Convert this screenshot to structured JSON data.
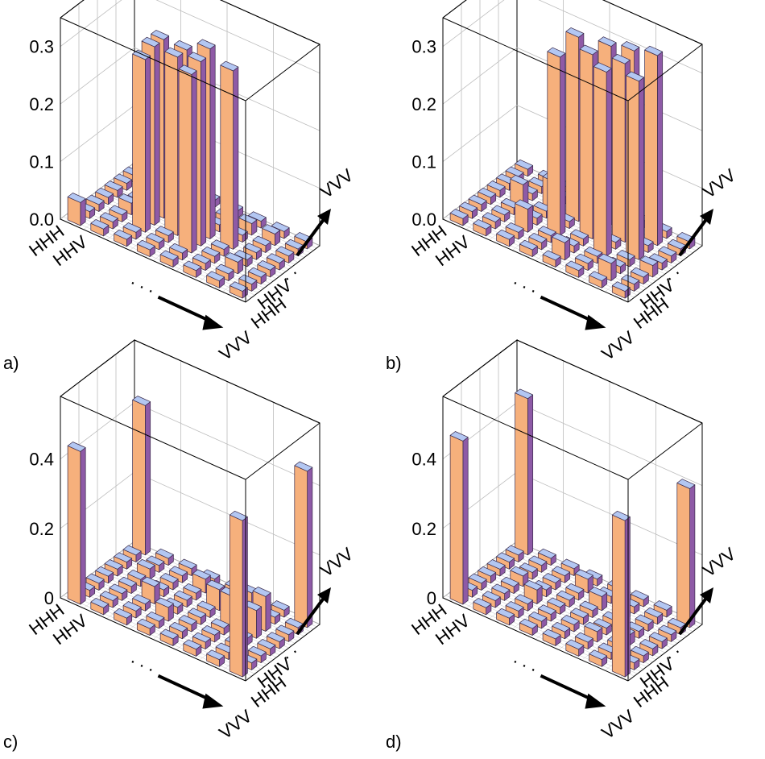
{
  "figure": {
    "panel_labels": [
      "a)",
      "b)",
      "c)",
      "d)"
    ]
  },
  "colors": {
    "bar_top": "#b3c7f2",
    "bar_front": "#8e5aa6",
    "bar_side": "#f6b07c",
    "floor_tile": "#a9bef0"
  },
  "chart_data": [
    {
      "type": "bar3d",
      "panel": "a)",
      "zticks": [
        "0.0",
        "0.1",
        "0.2",
        "0.3"
      ],
      "zlim": [
        0,
        0.35
      ],
      "xlabels": [
        "HHH",
        "HHV",
        ". . .",
        "VVV"
      ],
      "ylabels": [
        "HHH",
        "HHV",
        ". . .",
        "VVV"
      ],
      "n": 8,
      "bars": [
        {
          "x": 0,
          "y": 0,
          "z": 0.04
        },
        {
          "x": 2,
          "y": 2,
          "z": 0.3
        },
        {
          "x": 2,
          "y": 3,
          "z": 0.31
        },
        {
          "x": 2,
          "y": 4,
          "z": 0.31
        },
        {
          "x": 4,
          "y": 2,
          "z": 0.31
        },
        {
          "x": 4,
          "y": 3,
          "z": 0.32
        },
        {
          "x": 3,
          "y": 4,
          "z": 0.31
        },
        {
          "x": 3,
          "y": 3,
          "z": 0.31
        },
        {
          "x": 5,
          "y": 4,
          "z": 0.31
        },
        {
          "x": 4,
          "y": 4,
          "z": 0.33
        },
        {
          "x": 1,
          "y": 3,
          "z": 0.02
        },
        {
          "x": 6,
          "y": 6,
          "z": 0.02
        },
        {
          "x": 5,
          "y": 6,
          "z": 0.02
        },
        {
          "x": 6,
          "y": 2,
          "z": 0.02
        },
        {
          "x": 7,
          "y": 7,
          "z": 0.01
        }
      ]
    },
    {
      "type": "bar3d",
      "panel": "b)",
      "zticks": [
        "0.0",
        "0.1",
        "0.2",
        "0.3"
      ],
      "zlim": [
        0,
        0.35
      ],
      "xlabels": [
        "HHH",
        "HHV",
        ". . .",
        "VVV"
      ],
      "ylabels": [
        "HHH",
        "HHV",
        ". . .",
        "VVV"
      ],
      "n": 8,
      "bars": [
        {
          "x": 3,
          "y": 3,
          "z": 0.31
        },
        {
          "x": 3,
          "y": 5,
          "z": 0.32
        },
        {
          "x": 5,
          "y": 3,
          "z": 0.32
        },
        {
          "x": 5,
          "y": 5,
          "z": 0.31
        },
        {
          "x": 4,
          "y": 4,
          "z": 0.32
        },
        {
          "x": 4,
          "y": 6,
          "z": 0.31
        },
        {
          "x": 6,
          "y": 4,
          "z": 0.31
        },
        {
          "x": 6,
          "y": 6,
          "z": 0.33
        },
        {
          "x": 5,
          "y": 6,
          "z": 0.32
        },
        {
          "x": 2,
          "y": 2,
          "z": 0.04
        },
        {
          "x": 1,
          "y": 4,
          "z": 0.04
        },
        {
          "x": 2,
          "y": 5,
          "z": 0.05
        },
        {
          "x": 4,
          "y": 1,
          "z": 0.03
        },
        {
          "x": 6,
          "y": 1,
          "z": 0.03
        },
        {
          "x": 7,
          "y": 3,
          "z": 0.02
        }
      ]
    },
    {
      "type": "bar3d",
      "panel": "c)",
      "zticks": [
        "0",
        "0.2",
        "0.4"
      ],
      "zlim": [
        0,
        0.58
      ],
      "xlabels": [
        "HHH",
        "HHV",
        ". . .",
        "VVV"
      ],
      "ylabels": [
        "HHH",
        "HHV",
        ". . .",
        "VVV"
      ],
      "n": 8,
      "bars": [
        {
          "x": 0,
          "y": 0,
          "z": 0.44
        },
        {
          "x": 0,
          "y": 7,
          "z": 0.43
        },
        {
          "x": 7,
          "y": 0,
          "z": 0.45
        },
        {
          "x": 7,
          "y": 7,
          "z": 0.45
        },
        {
          "x": 5,
          "y": 4,
          "z": 0.09
        },
        {
          "x": 6,
          "y": 5,
          "z": 0.1
        },
        {
          "x": 6,
          "y": 4,
          "z": 0.08
        },
        {
          "x": 4,
          "y": 5,
          "z": 0.06
        },
        {
          "x": 2,
          "y": 3,
          "z": 0.05
        },
        {
          "x": 3,
          "y": 2,
          "z": 0.04
        },
        {
          "x": 5,
          "y": 6,
          "z": 0.06
        },
        {
          "x": 1,
          "y": 5,
          "z": 0.03
        },
        {
          "x": 3,
          "y": 6,
          "z": 0.04
        }
      ]
    },
    {
      "type": "bar3d",
      "panel": "d)",
      "zticks": [
        "0",
        "0.2",
        "0.4"
      ],
      "zlim": [
        0,
        0.58
      ],
      "xlabels": [
        "HHH",
        "HHV",
        ". . .",
        "VVV"
      ],
      "ylabels": [
        "HHH",
        "HHV",
        ". . .",
        "VVV"
      ],
      "n": 8,
      "bars": [
        {
          "x": 0,
          "y": 0,
          "z": 0.47
        },
        {
          "x": 0,
          "y": 7,
          "z": 0.45
        },
        {
          "x": 7,
          "y": 0,
          "z": 0.45
        },
        {
          "x": 7,
          "y": 7,
          "z": 0.4
        },
        {
          "x": 2,
          "y": 3,
          "z": 0.04
        },
        {
          "x": 4,
          "y": 5,
          "z": 0.04
        },
        {
          "x": 5,
          "y": 2,
          "z": 0.03
        },
        {
          "x": 3,
          "y": 6,
          "z": 0.04
        },
        {
          "x": 6,
          "y": 3,
          "z": 0.03
        },
        {
          "x": 1,
          "y": 4,
          "z": 0.03
        }
      ]
    }
  ]
}
